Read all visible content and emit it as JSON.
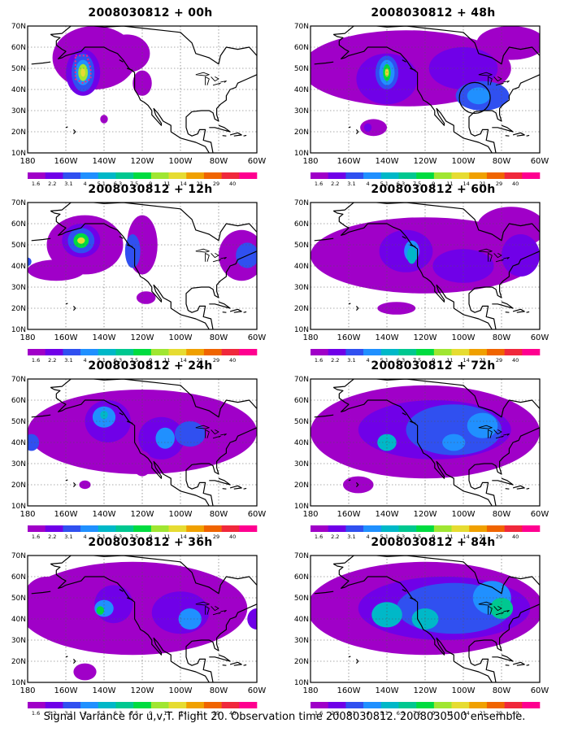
{
  "footer": "Signal Variance for u,v,T. Flight 20. Observation time 2008030812. 2008030500 ensemble.",
  "lat_labels": [
    "70N",
    "60N",
    "50N",
    "40N",
    "30N",
    "20N",
    "10N"
  ],
  "lon_labels": [
    "180",
    "160W",
    "140W",
    "120W",
    "100W",
    "80W",
    "60W"
  ],
  "colorbar": {
    "colors": [
      "#a000c8",
      "#7000e8",
      "#3050f0",
      "#2090ff",
      "#00b8c8",
      "#00c890",
      "#00dc40",
      "#a0e632",
      "#e6dc32",
      "#f0a000",
      "#f06400",
      "#f0283c",
      "#ff0090"
    ],
    "labels": [
      "1.6",
      "2.2",
      "3.1",
      "4",
      "5.1",
      "6.3",
      "7.5",
      "9",
      "11",
      "14",
      "21",
      "29",
      "40"
    ]
  },
  "panels": [
    {
      "title": "2008030812 + 00h",
      "circle": false,
      "box": true
    },
    {
      "title": "2008030812 + 48h",
      "circle": true,
      "box": false
    },
    {
      "title": "2008030812 + 12h",
      "circle": false,
      "box": false
    },
    {
      "title": "2008030812 + 60h",
      "circle": false,
      "box": false
    },
    {
      "title": "2008030812 + 24h",
      "circle": false,
      "box": false
    },
    {
      "title": "2008030812 + 72h",
      "circle": false,
      "box": false
    },
    {
      "title": "2008030812 + 36h",
      "circle": false,
      "box": false
    },
    {
      "title": "2008030812 + 84h",
      "circle": false,
      "box": false
    }
  ]
}
